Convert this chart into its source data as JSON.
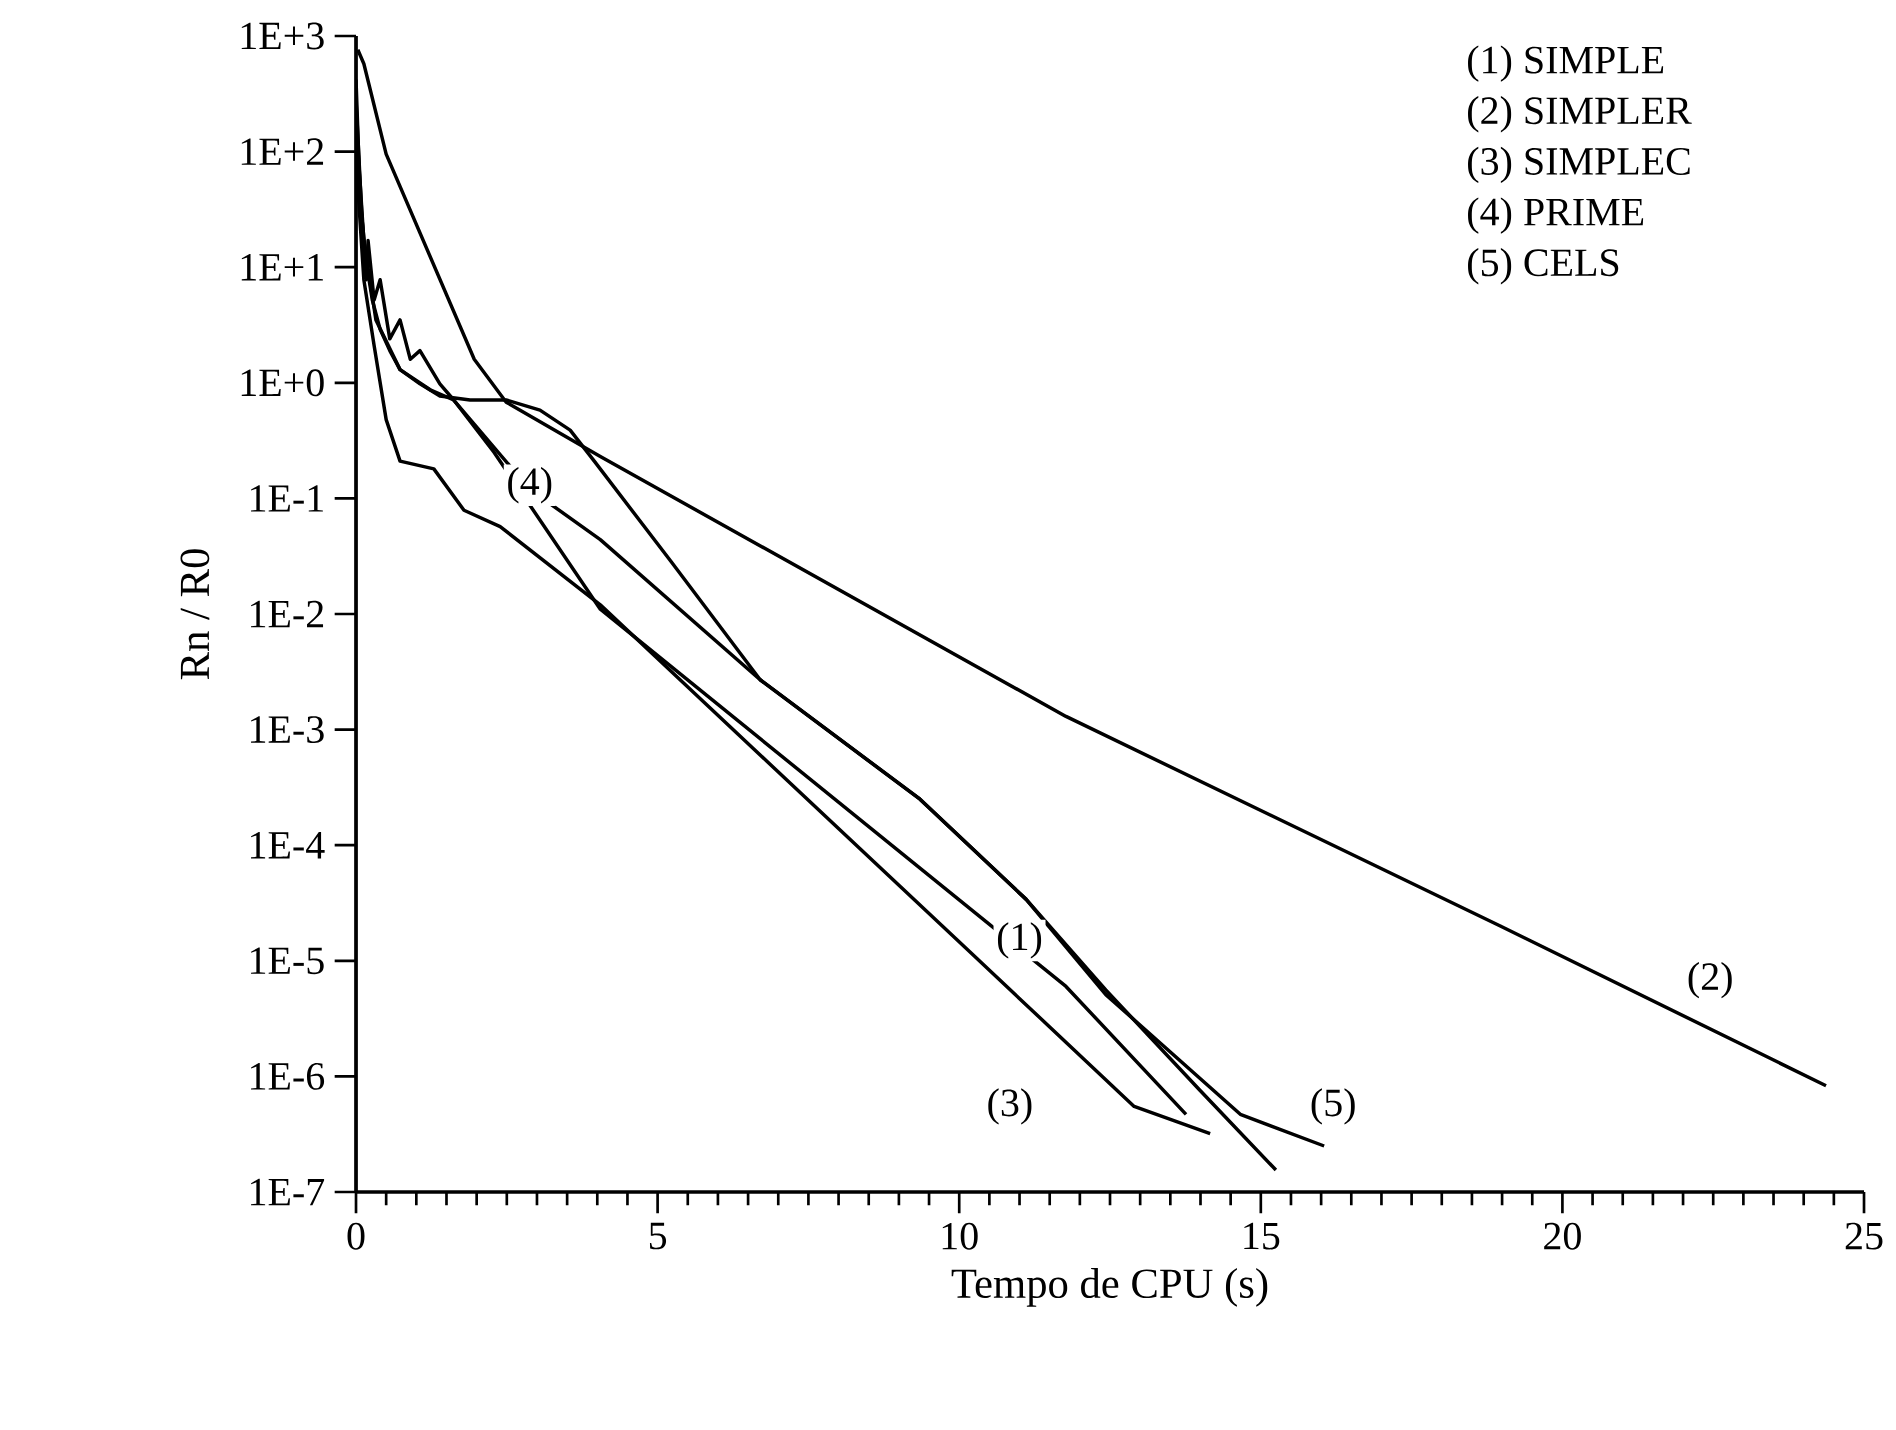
{
  "chart_data": {
    "type": "line",
    "log": "y",
    "xlabel": "Tempo de CPU (s)",
    "ylabel": "Rn / R0",
    "xlim": [
      0,
      25
    ],
    "xticks": [
      0,
      5,
      10,
      15,
      20,
      25
    ],
    "ylim": [
      1e-07,
      1000
    ],
    "yticks": [
      {
        "value": 1000,
        "label": "1E+3"
      },
      {
        "value": 100,
        "label": "1E+2"
      },
      {
        "value": 10,
        "label": "1E+1"
      },
      {
        "value": 1,
        "label": "1E+0"
      },
      {
        "value": 0.1,
        "label": "1E-1"
      },
      {
        "value": 0.01,
        "label": "1E-2"
      },
      {
        "value": 0.001,
        "label": "1E-3"
      },
      {
        "value": 0.0001,
        "label": "1E-4"
      },
      {
        "value": 1e-05,
        "label": "1E-5"
      },
      {
        "value": 1e-06,
        "label": "1E-6"
      },
      {
        "value": 1e-07,
        "label": "1E-7"
      }
    ],
    "series": [
      {
        "color": "#000000",
        "x": [
          0,
          0.07,
          0.17,
          0.27,
          0.4,
          0.56,
          0.73,
          1.06,
          1.39,
          1.89,
          2.49,
          3.05,
          3.55,
          3.95,
          5.21,
          6.7,
          9.35,
          11.11,
          12.43,
          13.99,
          15.25
        ],
        "values": [
          420,
          38,
          11,
          5.2,
          2.9,
          1.9,
          1.3,
          0.98,
          0.77,
          0.71,
          0.71,
          0.58,
          0.39,
          0.21,
          0.029,
          0.0027,
          0.00025,
          3.4e-05,
          5.6e-06,
          7.6e-07,
          1.55e-07
        ]
      },
      {
        "color": "#000000",
        "x": [
          0.03,
          0.13,
          0.5,
          1.96,
          2.49,
          4.05,
          11.77,
          18.97,
          24.37
        ],
        "values": [
          760,
          575,
          95,
          1.6,
          0.68,
          0.23,
          0.0013,
          2e-05,
          8.3e-07
        ]
      },
      {
        "color": "#000000",
        "x": [
          0,
          0.13,
          0.3,
          0.5,
          0.73,
          1.29,
          1.79,
          2.39,
          4.05,
          10.25,
          12.9,
          14.16
        ],
        "values": [
          85,
          7.8,
          2.1,
          0.48,
          0.21,
          0.18,
          0.079,
          0.057,
          0.012,
          1.1e-05,
          5.5e-07,
          3.2e-07
        ]
      },
      {
        "color": "#000000",
        "x": [
          0,
          0.1,
          0.17,
          0.2,
          0.3,
          0.4,
          0.56,
          0.73,
          0.9,
          1.06,
          1.39,
          1.62,
          2.29,
          4.05,
          11.77,
          13.76
        ],
        "values": [
          280,
          26,
          7.8,
          17,
          5.2,
          7.8,
          2.4,
          3.5,
          1.6,
          1.9,
          0.98,
          0.71,
          0.25,
          0.011,
          6e-06,
          4.7e-07
        ]
      },
      {
        "color": "#000000",
        "x": [
          0,
          0.13,
          0.33,
          0.73,
          1.23,
          1.62,
          2.88,
          4.05,
          6.7,
          9.35,
          11.11,
          12.43,
          14.66,
          16.05
        ],
        "values": [
          190,
          17,
          3.5,
          1.3,
          0.87,
          0.71,
          0.12,
          0.044,
          0.0027,
          0.00025,
          3.4e-05,
          5.1e-06,
          4.7e-07,
          2.5e-07
        ]
      }
    ],
    "annotations": [
      "(1) SIMPLE",
      "(2) SIMPLER",
      "(3) SIMPLEC",
      "(4) PRIME",
      "(5) CELS",
      {
        "text": "(1)",
        "x": 11.0,
        "y": 1.5e-05
      },
      {
        "text": "(2)",
        "x": 22.45,
        "y": 6.8e-06
      },
      {
        "text": "(3)",
        "x": 10.84,
        "y": 5.5e-07
      },
      {
        "text": "(4)",
        "x": 2.88,
        "y": 0.13
      },
      {
        "text": "(5)",
        "x": 16.2,
        "y": 5.5e-07
      }
    ]
  }
}
